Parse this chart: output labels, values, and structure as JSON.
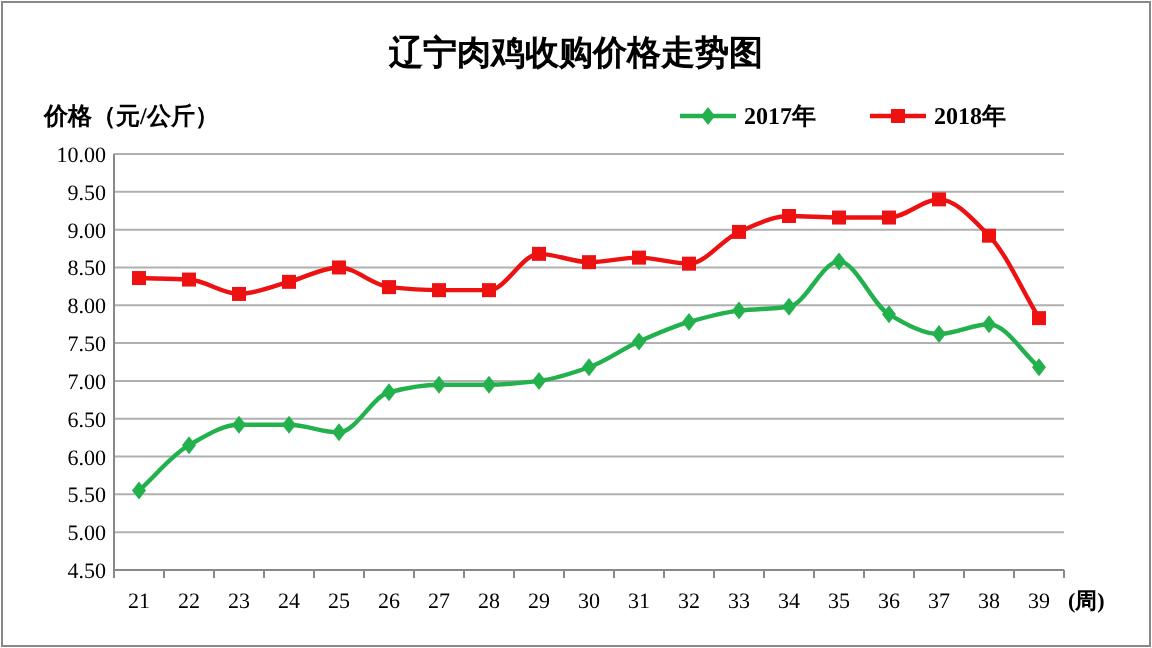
{
  "chart_data": {
    "type": "line",
    "title": "辽宁肉鸡收购价格走势图",
    "ylabel": "价格（元/公斤）",
    "xlabel": "(周)",
    "categories": [
      "21",
      "22",
      "23",
      "24",
      "25",
      "26",
      "27",
      "28",
      "29",
      "30",
      "31",
      "32",
      "33",
      "34",
      "35",
      "36",
      "37",
      "38",
      "39"
    ],
    "series": [
      {
        "name": "2017年",
        "color": "#22b14c",
        "marker": "diamond",
        "values": [
          5.55,
          6.15,
          6.42,
          6.42,
          6.32,
          6.85,
          6.95,
          6.95,
          7.0,
          7.18,
          7.52,
          7.78,
          7.93,
          7.98,
          8.58,
          7.88,
          7.62,
          7.75,
          7.18
        ]
      },
      {
        "name": "2018年",
        "color": "#ee1111",
        "marker": "square",
        "values": [
          8.36,
          8.34,
          8.15,
          8.31,
          8.5,
          8.24,
          8.2,
          8.2,
          8.68,
          8.57,
          8.63,
          8.55,
          8.97,
          9.18,
          9.16,
          9.16,
          9.4,
          8.92,
          7.83
        ]
      }
    ],
    "ylim": [
      4.5,
      10.0
    ],
    "yticks": [
      {
        "value": 4.5,
        "label": "4.50"
      },
      {
        "value": 5,
        "label": "5.00"
      },
      {
        "value": 5.5,
        "label": "5.50"
      },
      {
        "value": 6,
        "label": "6.00"
      },
      {
        "value": 6.5,
        "label": "6.50"
      },
      {
        "value": 7,
        "label": "7.00"
      },
      {
        "value": 7.5,
        "label": "7.50"
      },
      {
        "value": 8,
        "label": "8.00"
      },
      {
        "value": 8.5,
        "label": "8.50"
      },
      {
        "value": 9,
        "label": "9.00"
      },
      {
        "value": 9.5,
        "label": "9.50"
      },
      {
        "value": 10,
        "label": "10.00"
      }
    ],
    "grid": "y",
    "legend": "top right",
    "line_style": "solid"
  }
}
